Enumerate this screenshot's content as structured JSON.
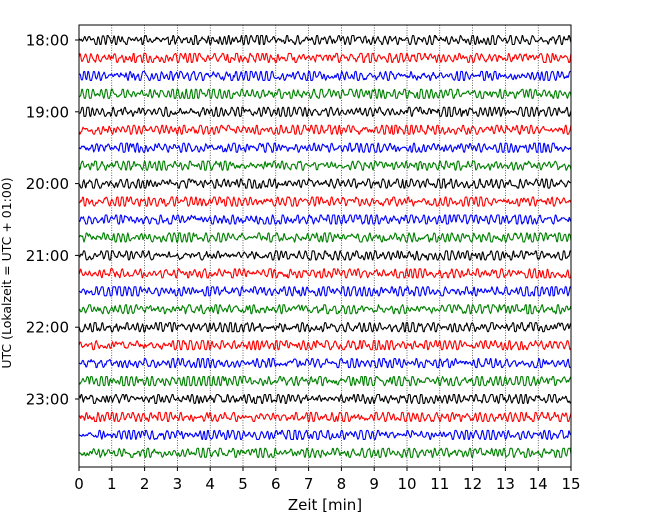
{
  "chart_data": {
    "type": "line",
    "title": "",
    "xlabel": "Zeit  [min]",
    "ylabel": "UTC (Lokalzeit = UTC + 01:00)",
    "xlim": [
      0,
      15
    ],
    "x_ticks": [
      0,
      1,
      2,
      3,
      4,
      5,
      6,
      7,
      8,
      9,
      10,
      11,
      12,
      13,
      14,
      15
    ],
    "grid": {
      "vertical": true,
      "style": "dotted"
    },
    "row_labels": [
      {
        "row": 0,
        "label": "18:00"
      },
      {
        "row": 4,
        "label": "19:00"
      },
      {
        "row": 8,
        "label": "20:00"
      },
      {
        "row": 12,
        "label": "21:00"
      },
      {
        "row": 16,
        "label": "22:00"
      },
      {
        "row": 20,
        "label": "23:00"
      }
    ],
    "row_minutes": 15,
    "color_cycle": [
      "#000000",
      "#ff0000",
      "#0000ff",
      "#008000"
    ],
    "traces": [
      "18:00",
      "18:15",
      "18:30",
      "18:45",
      "19:00",
      "19:15",
      "19:30",
      "19:45",
      "20:00",
      "20:15",
      "20:30",
      "20:45",
      "21:00",
      "21:15",
      "21:30",
      "21:45",
      "22:00",
      "22:15",
      "22:30",
      "22:45",
      "23:00",
      "23:15",
      "23:30",
      "23:45"
    ]
  }
}
